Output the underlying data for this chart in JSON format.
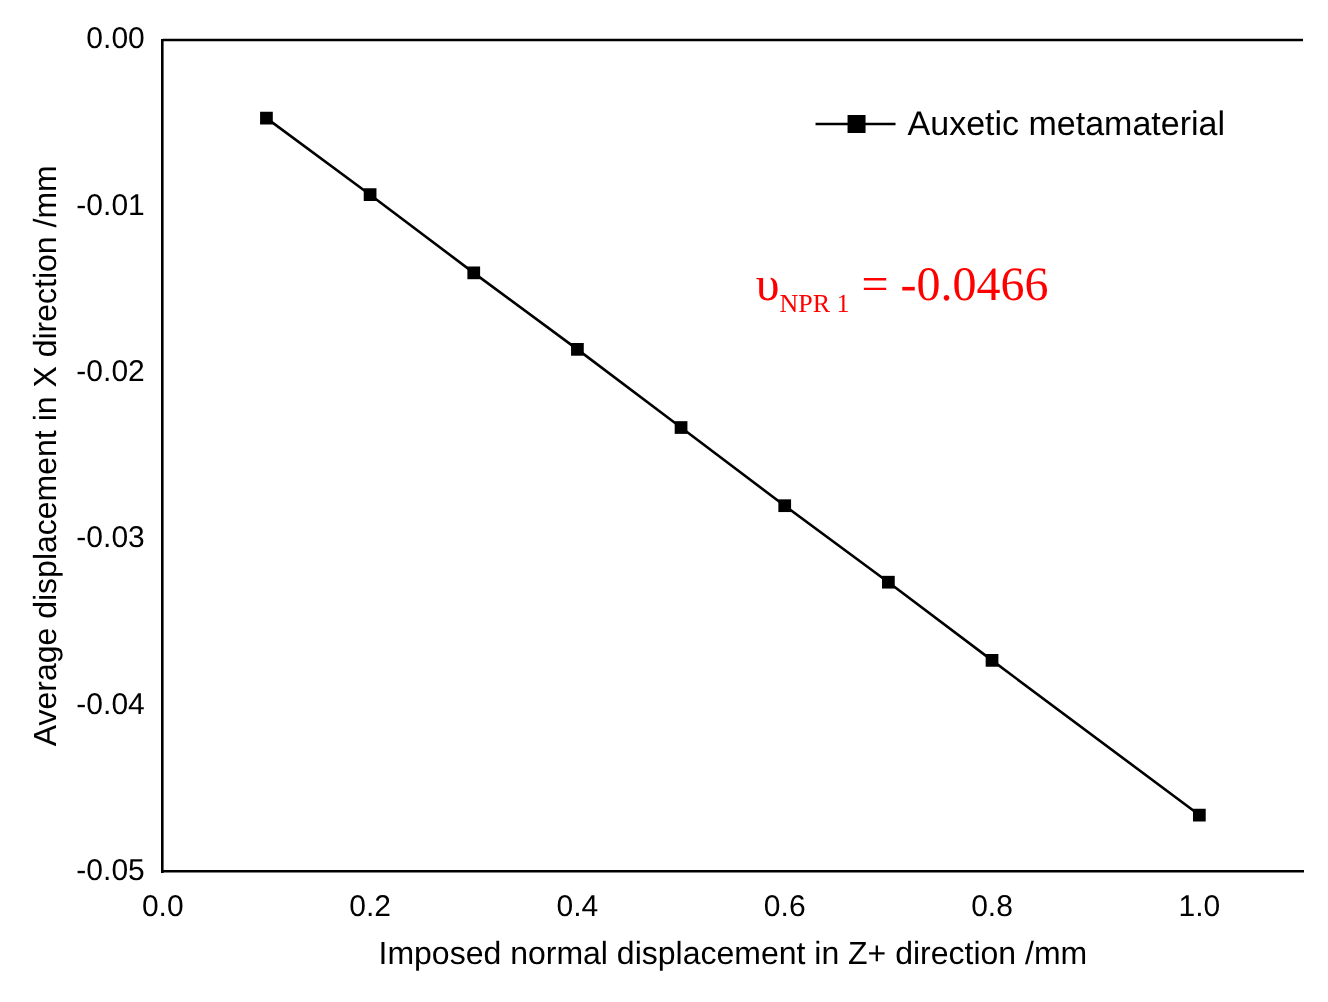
{
  "chart_data": {
    "type": "line",
    "xlabel": "Imposed normal displacement in Z+ direction /mm",
    "ylabel": "Average displacement in X direction /mm",
    "x": [
      0.1,
      0.2,
      0.3,
      0.4,
      0.5,
      0.6,
      0.7,
      0.8,
      1.0
    ],
    "series": [
      {
        "name": "Auxetic metamaterial",
        "color": "#000000",
        "values": [
          -0.0047,
          -0.0093,
          -0.014,
          -0.0186,
          -0.0233,
          -0.028,
          -0.0326,
          -0.0373,
          -0.0466
        ]
      }
    ],
    "xlim": [
      0,
      1.1
    ],
    "xticks": [
      {
        "value": 0,
        "label": "0.0"
      },
      0.2,
      0.4,
      0.6,
      0.8,
      {
        "value": 1,
        "label": "1.0"
      }
    ],
    "ylim": [
      -0.05,
      0
    ],
    "yticks": [
      {
        "value": -0.05,
        "label": "-0.05"
      },
      {
        "value": -0.04,
        "label": "-0.04"
      },
      {
        "value": -0.03,
        "label": "-0.03"
      },
      {
        "value": -0.02,
        "label": "-0.02"
      },
      {
        "value": -0.01,
        "label": "-0.01"
      },
      {
        "value": 0,
        "label": "0.00"
      }
    ],
    "annotations": [
      "υ$_{NPR 1}$ = -0.0466"
    ],
    "legend": "top right",
    "marker": "square",
    "line_style": "solid",
    "grid": false
  }
}
